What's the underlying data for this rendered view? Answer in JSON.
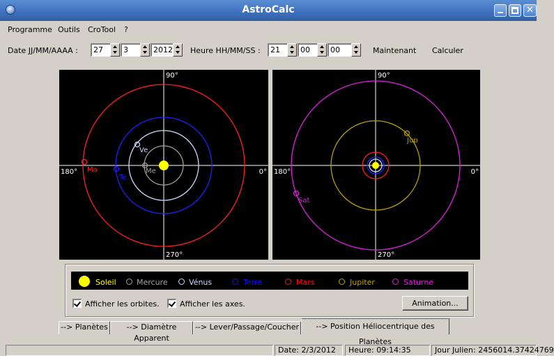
{
  "window": {
    "title": "AstroCalc"
  },
  "menu": [
    "Programme",
    "Outils",
    "CroTool",
    "?"
  ],
  "date_row": {
    "date_label": "Date JJ/MM/AAAA :",
    "day": "27",
    "month": "3",
    "year": "2012",
    "time_label": "Heure HH/MM/SS :",
    "hour": "21",
    "minute": "00",
    "second": "00",
    "now_button": "Maintenant",
    "calc_button": "Calculer"
  },
  "plots": {
    "axis_top": "90°",
    "axis_left": "180°",
    "axis_right": "0°",
    "axis_bottom": "270°",
    "inner": {
      "planets": [
        {
          "abbr": "Ma",
          "name": "Mars",
          "color": "#ff2020"
        },
        {
          "abbr": "Te",
          "name": "Terre",
          "color": "#2020ff"
        },
        {
          "abbr": "Ve",
          "name": "Vénus",
          "color": "#d0e0ff"
        },
        {
          "abbr": "Me",
          "name": "Mercure",
          "color": "#a0a0a0"
        }
      ]
    },
    "outer": {
      "planets": [
        {
          "abbr": "Jup",
          "name": "Jupiter",
          "color": "#b8a000"
        },
        {
          "abbr": "Sat",
          "name": "Saturne",
          "color": "#e020e0"
        }
      ]
    }
  },
  "legend": [
    {
      "name": "Soleil",
      "color": "#ffff00"
    },
    {
      "name": "Mercure",
      "color": "#a0a0a0"
    },
    {
      "name": "Vénus",
      "color": "#c8d8ff"
    },
    {
      "name": "Terre",
      "color": "#1010ff"
    },
    {
      "name": "Mars",
      "color": "#ff1010"
    },
    {
      "name": "Jupiter",
      "color": "#b8a000"
    },
    {
      "name": "Saturne",
      "color": "#e020e0"
    }
  ],
  "options": {
    "show_orbits": "Afficher les orbites.",
    "show_axes": "Afficher les axes.",
    "animation_button": "Animation..."
  },
  "tabs": [
    "--> Planètes",
    "--> Diamètre Apparent",
    "--> Lever/Passage/Coucher",
    "--> Position Héliocentrique des Planètes"
  ],
  "status": {
    "date": "Date: 2/3/2012",
    "time": "Heure: 09:14:35",
    "julian": "Jour Julien: 2456014.37424769"
  }
}
